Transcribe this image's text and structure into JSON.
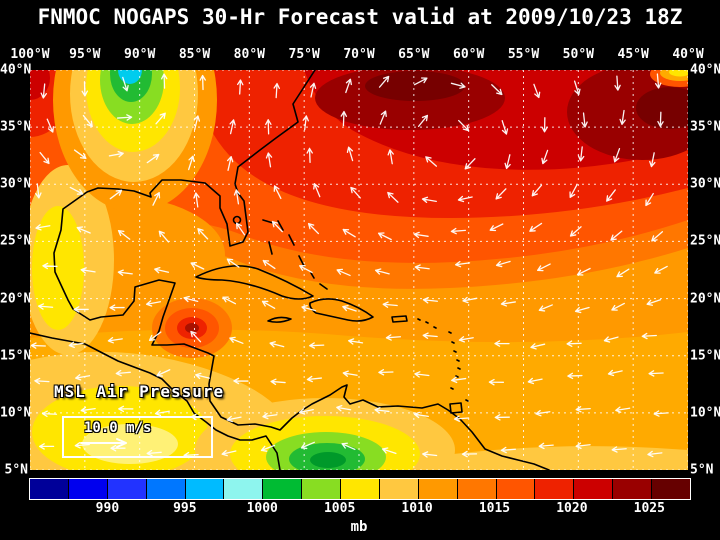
{
  "title": "FNMOC NOGAPS 30-Hr Forecast valid at 2009/10/23 18Z",
  "map": {
    "overlay_label": "MSL Air Pressure",
    "wind_legend_label": "10.0 m/s",
    "lon_labels": [
      "100°W",
      "95°W",
      "90°W",
      "85°W",
      "80°W",
      "75°W",
      "70°W",
      "65°W",
      "60°W",
      "55°W",
      "50°W",
      "45°W",
      "40°W"
    ],
    "lat_labels": [
      "40°N",
      "35°N",
      "30°N",
      "25°N",
      "20°N",
      "15°N",
      "10°N",
      "5°N"
    ]
  },
  "colorbar": {
    "unit": "mb",
    "tick_labels": [
      "990",
      "995",
      "1000",
      "1005",
      "1010",
      "1015",
      "1020",
      "1025"
    ],
    "colors": [
      "#000099",
      "#0000ee",
      "#2233ff",
      "#0077ff",
      "#00bbff",
      "#8ef5ee",
      "#00bb33",
      "#88dd22",
      "#ffe600",
      "#ffc840",
      "#ff9900",
      "#ff7700",
      "#ff5500",
      "#ee2200",
      "#cc0000",
      "#990000",
      "#660000"
    ]
  },
  "chart_data": {
    "type": "heatmap",
    "title": "FNMOC NOGAPS 30-Hr Forecast valid at 2009/10/23 18Z",
    "variable": "MSL Air Pressure",
    "units": "mb",
    "lon_ticks_deg_w": [
      100,
      95,
      90,
      85,
      80,
      75,
      70,
      65,
      60,
      55,
      50,
      45,
      40
    ],
    "lat_ticks_deg_n": [
      40,
      35,
      30,
      25,
      20,
      15,
      10,
      5
    ],
    "colorbar_ticks_mb": [
      990,
      995,
      1000,
      1005,
      1010,
      1015,
      1020,
      1025
    ],
    "colorbar_range_mb": [
      987.5,
      1027.5
    ],
    "grid": "5 degree dashed lat/lon grid",
    "overlays": [
      "filled pressure contours",
      "white wind vectors",
      "black coastlines"
    ],
    "wind_reference_ms": 10.0,
    "features": [
      {
        "name": "subtropical high (dark red core)",
        "approx_lon_w": 68,
        "approx_lat_n": 36,
        "pressure_mb": 1025
      },
      {
        "name": "low over south-central US (green/cyan core)",
        "approx_lon_w": 90.5,
        "approx_lat_n": 39,
        "pressure_mb": 998
      },
      {
        "name": "compact low near NW Caribbean / Yucatan",
        "approx_lon_w": 85.5,
        "approx_lat_n": 17.5,
        "pressure_mb": 1018
      },
      {
        "name": "low near Colombia / SW Caribbean (green core)",
        "approx_lon_w": 73,
        "approx_lat_n": 6,
        "pressure_mb": 1002
      },
      {
        "name": "trade-wind easterlies across tropics",
        "flow": "east-to-west vectors south of 20N"
      }
    ]
  }
}
